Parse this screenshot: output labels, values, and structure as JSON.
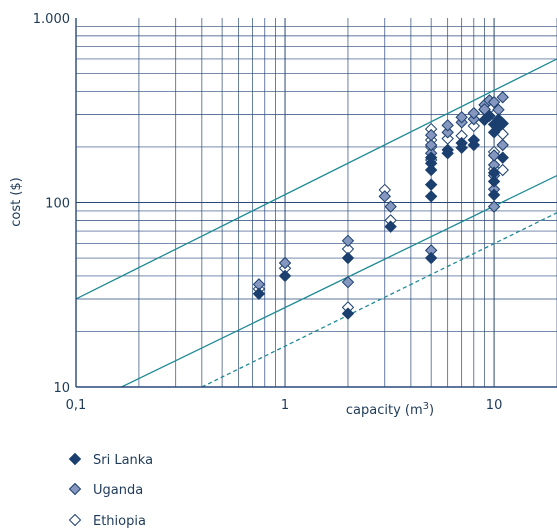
{
  "chart_data": {
    "type": "scatter",
    "title": "",
    "xlabel": "capacity (m",
    "xlabel_sup": "3",
    "xlabel_close": ")",
    "ylabel": "cost ($)",
    "xscale": "log",
    "yscale": "log",
    "xlim": [
      0.1,
      20
    ],
    "ylim": [
      10,
      1000
    ],
    "x_ticks": [
      {
        "value": 0.1,
        "label": "0,1"
      },
      {
        "value": 1,
        "label": "1"
      },
      {
        "value": 10,
        "label": "10"
      }
    ],
    "y_ticks": [
      {
        "value": 10,
        "label": "10"
      },
      {
        "value": 100,
        "label": "100"
      },
      {
        "value": 1000,
        "label": "1.000"
      }
    ],
    "grid": true,
    "legend_position": "bottom-left",
    "colors": {
      "sri_lanka": "#1b3f6e",
      "uganda": "#8597bf",
      "ethiopia": "#ffffff",
      "marker_edge": "#1b3f6e",
      "grid": "#29487a",
      "trend": "#1f8a96",
      "text": "#1f3b5a"
    },
    "reference_lines": [
      {
        "style": "solid",
        "points": [
          [
            0.1,
            30
          ],
          [
            20,
            600
          ]
        ]
      },
      {
        "style": "solid",
        "points": [
          [
            0.165,
            10
          ],
          [
            20,
            140
          ]
        ]
      },
      {
        "style": "dashed",
        "points": [
          [
            0.4,
            10
          ],
          [
            20,
            88
          ]
        ]
      }
    ],
    "series": [
      {
        "name": "Sri Lanka",
        "marker": "filled",
        "points": [
          [
            0.75,
            32
          ],
          [
            1,
            40
          ],
          [
            2,
            25
          ],
          [
            2,
            50
          ],
          [
            3.2,
            74
          ],
          [
            5,
            50
          ],
          [
            5,
            108
          ],
          [
            5,
            125
          ],
          [
            5,
            150
          ],
          [
            5,
            163
          ],
          [
            5,
            175
          ],
          [
            6,
            185
          ],
          [
            6,
            193
          ],
          [
            7,
            198
          ],
          [
            7,
            210
          ],
          [
            8,
            205
          ],
          [
            8,
            218
          ],
          [
            9,
            280
          ],
          [
            9.5,
            295
          ],
          [
            10,
            110
          ],
          [
            10,
            130
          ],
          [
            10,
            145
          ],
          [
            10,
            240
          ],
          [
            10,
            265
          ],
          [
            10.5,
            258
          ],
          [
            10.5,
            282
          ],
          [
            11,
            175
          ],
          [
            11,
            268
          ]
        ]
      },
      {
        "name": "Uganda",
        "marker": "grey",
        "points": [
          [
            0.75,
            36
          ],
          [
            1,
            47
          ],
          [
            2,
            37
          ],
          [
            2,
            62
          ],
          [
            3,
            108
          ],
          [
            3.2,
            95
          ],
          [
            5,
            55
          ],
          [
            5,
            185
          ],
          [
            5,
            205
          ],
          [
            5,
            232
          ],
          [
            6,
            240
          ],
          [
            6,
            262
          ],
          [
            7,
            272
          ],
          [
            7,
            290
          ],
          [
            8,
            283
          ],
          [
            8,
            305
          ],
          [
            9,
            338
          ],
          [
            9,
            320
          ],
          [
            9.5,
            358
          ],
          [
            10,
            95
          ],
          [
            10,
            118
          ],
          [
            10,
            140
          ],
          [
            10,
            160
          ],
          [
            10,
            180
          ],
          [
            10,
            350
          ],
          [
            10.5,
            318
          ],
          [
            11,
            205
          ],
          [
            11,
            372
          ]
        ]
      },
      {
        "name": "Ethiopia",
        "marker": "open",
        "points": [
          [
            0.75,
            34
          ],
          [
            1,
            44
          ],
          [
            2,
            27
          ],
          [
            2,
            56
          ],
          [
            3,
            117
          ],
          [
            3.2,
            80
          ],
          [
            5,
            170
          ],
          [
            5,
            200
          ],
          [
            5,
            218
          ],
          [
            5,
            250
          ],
          [
            6,
            222
          ],
          [
            7,
            230
          ],
          [
            8,
            260
          ],
          [
            9,
            318
          ],
          [
            10,
            152
          ],
          [
            10,
            188
          ],
          [
            10,
            298
          ],
          [
            11,
            150
          ],
          [
            11,
            235
          ]
        ]
      }
    ]
  }
}
